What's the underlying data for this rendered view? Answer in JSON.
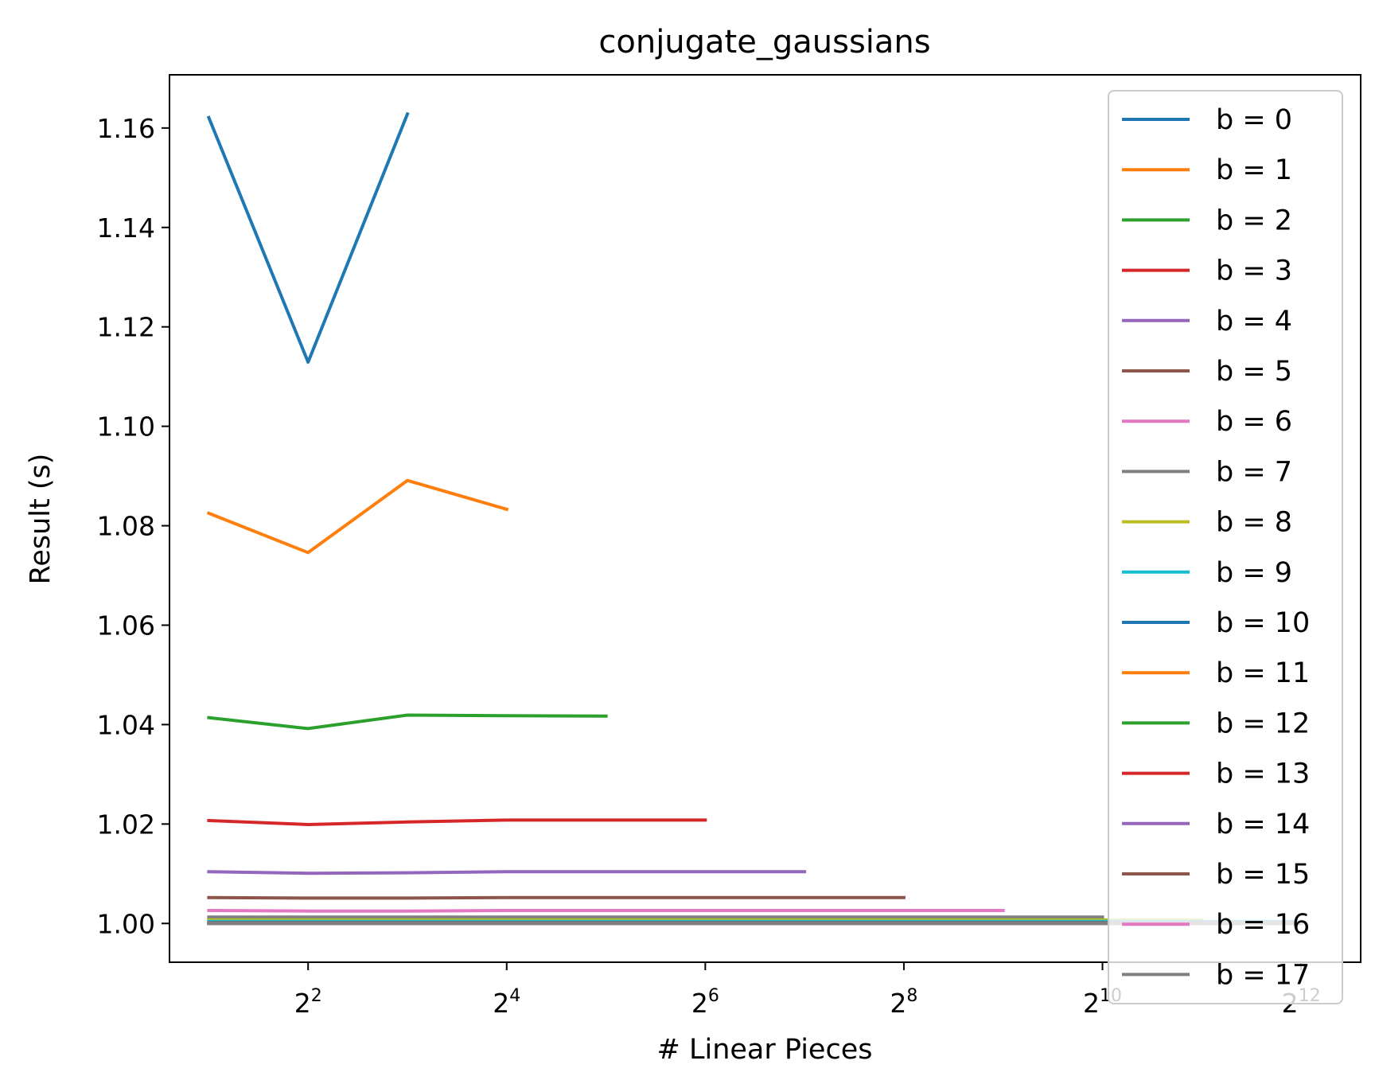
{
  "chart_data": {
    "type": "line",
    "title": "conjugate_gaussians",
    "xlabel": "# Linear Pieces",
    "ylabel": "Result (s)",
    "x_scale": "log2",
    "x_ticks": [
      {
        "base": "2",
        "exp": "2",
        "value": 4
      },
      {
        "base": "2",
        "exp": "4",
        "value": 16
      },
      {
        "base": "2",
        "exp": "6",
        "value": 64
      },
      {
        "base": "2",
        "exp": "8",
        "value": 256
      },
      {
        "base": "2",
        "exp": "10",
        "value": 1024
      },
      {
        "base": "2",
        "exp": "12",
        "value": 4096
      }
    ],
    "xlim": [
      1.52,
      6210
    ],
    "y_ticks": [
      "1.00",
      "1.02",
      "1.04",
      "1.06",
      "1.08",
      "1.10",
      "1.12",
      "1.14",
      "1.16"
    ],
    "ylim": [
      0.9922,
      1.1707
    ],
    "grid": false,
    "legend_position": "right",
    "series": [
      {
        "name": "b = 0",
        "color": "#1f77b4",
        "x": [
          2,
          4,
          8
        ],
        "y": [
          1.1621,
          1.1129,
          1.1628
        ]
      },
      {
        "name": "b = 1",
        "color": "#ff7f0e",
        "x": [
          2,
          4,
          8,
          16
        ],
        "y": [
          1.0825,
          1.0746,
          1.0891,
          1.0833
        ]
      },
      {
        "name": "b = 2",
        "color": "#2ca02c",
        "x": [
          2,
          4,
          8,
          16,
          32
        ],
        "y": [
          1.0414,
          1.0392,
          1.0419,
          1.0418,
          1.0417
        ]
      },
      {
        "name": "b = 3",
        "color": "#d62728",
        "x": [
          2,
          4,
          8,
          16,
          32,
          64
        ],
        "y": [
          1.0207,
          1.0199,
          1.0204,
          1.0208,
          1.0208,
          1.0208
        ]
      },
      {
        "name": "b = 4",
        "color": "#9467bd",
        "x": [
          2,
          4,
          8,
          16,
          32,
          64,
          128
        ],
        "y": [
          1.0104,
          1.0101,
          1.0102,
          1.0104,
          1.0104,
          1.0104,
          1.0104
        ]
      },
      {
        "name": "b = 5",
        "color": "#8c564b",
        "x": [
          2,
          4,
          8,
          16,
          32,
          64,
          128,
          256
        ],
        "y": [
          1.0052,
          1.0051,
          1.0051,
          1.0052,
          1.0052,
          1.0052,
          1.0052,
          1.0052
        ]
      },
      {
        "name": "b = 6",
        "color": "#e377c2",
        "x": [
          2,
          4,
          8,
          16,
          32,
          64,
          128,
          256,
          512
        ],
        "y": [
          1.0026,
          1.0025,
          1.0025,
          1.0026,
          1.0026,
          1.0026,
          1.0026,
          1.0026,
          1.0026
        ]
      },
      {
        "name": "b = 7",
        "color": "#7f7f7f",
        "x": [
          2,
          4,
          8,
          16,
          32,
          64,
          128,
          256,
          512,
          1024
        ],
        "y": [
          1.0013,
          1.0013,
          1.0013,
          1.0013,
          1.0013,
          1.0013,
          1.0013,
          1.0013,
          1.0013,
          1.0013
        ]
      },
      {
        "name": "b = 8",
        "color": "#bcbd22",
        "x": [
          2,
          4,
          8,
          16,
          32,
          64,
          128,
          256,
          512,
          1024,
          2048
        ],
        "y": [
          1.0007,
          1.0007,
          1.0007,
          1.0007,
          1.0007,
          1.0007,
          1.0007,
          1.0007,
          1.0007,
          1.0007,
          1.0007
        ]
      },
      {
        "name": "b = 9",
        "color": "#17becf",
        "x": [
          2,
          4,
          8,
          16,
          32,
          64,
          128,
          256,
          512,
          1024,
          2048,
          4096
        ],
        "y": [
          1.0004,
          1.0004,
          1.0004,
          1.0004,
          1.0004,
          1.0004,
          1.0004,
          1.0004,
          1.0004,
          1.0004,
          1.0004,
          1.0004
        ]
      },
      {
        "name": "b = 10",
        "color": "#1f77b4",
        "x": [
          2,
          4,
          8,
          16,
          32,
          64,
          128,
          256,
          512,
          1024,
          2048,
          4096
        ],
        "y": [
          1.0002,
          1.0002,
          1.0002,
          1.0002,
          1.0002,
          1.0002,
          1.0002,
          1.0002,
          1.0002,
          1.0002,
          1.0002,
          1.0002
        ]
      },
      {
        "name": "b = 11",
        "color": "#ff7f0e",
        "x": [
          2,
          4,
          8,
          16,
          32,
          64,
          128,
          256,
          512,
          1024,
          2048,
          4096
        ],
        "y": [
          1.0001,
          1.0001,
          1.0001,
          1.0001,
          1.0001,
          1.0001,
          1.0001,
          1.0001,
          1.0001,
          1.0001,
          1.0001,
          1.0001
        ]
      },
      {
        "name": "b = 12",
        "color": "#2ca02c",
        "x": [
          2,
          4,
          8,
          16,
          32,
          64,
          128,
          256,
          512,
          1024,
          2048,
          4096
        ],
        "y": [
          1.00005,
          1.00005,
          1.00005,
          1.00005,
          1.00005,
          1.00005,
          1.00005,
          1.00005,
          1.00005,
          1.00005,
          1.00005,
          1.00005
        ]
      },
      {
        "name": "b = 13",
        "color": "#d62728",
        "x": [
          2,
          4,
          8,
          16,
          32,
          64,
          128,
          256,
          512,
          1024,
          2048,
          4096
        ],
        "y": [
          1.00003,
          1.00003,
          1.00003,
          1.00003,
          1.00003,
          1.00003,
          1.00003,
          1.00003,
          1.00003,
          1.00003,
          1.00003,
          1.00003
        ]
      },
      {
        "name": "b = 14",
        "color": "#9467bd",
        "x": [
          2,
          4,
          8,
          16,
          32,
          64,
          128,
          256,
          512,
          1024,
          2048,
          4096
        ],
        "y": [
          1.00002,
          1.00002,
          1.00002,
          1.00002,
          1.00002,
          1.00002,
          1.00002,
          1.00002,
          1.00002,
          1.00002,
          1.00002,
          1.00002
        ]
      },
      {
        "name": "b = 15",
        "color": "#8c564b",
        "x": [
          2,
          4,
          8,
          16,
          32,
          64,
          128,
          256,
          512,
          1024,
          2048,
          4096
        ],
        "y": [
          1.00001,
          1.00001,
          1.00001,
          1.00001,
          1.00001,
          1.00001,
          1.00001,
          1.00001,
          1.00001,
          1.00001,
          1.00001,
          1.00001
        ]
      },
      {
        "name": "b = 16",
        "color": "#e377c2",
        "x": [
          2,
          4,
          8,
          16,
          32,
          64,
          128,
          256,
          512,
          1024,
          2048,
          4096
        ],
        "y": [
          1.0,
          1.0,
          1.0,
          1.0,
          1.0,
          1.0,
          1.0,
          1.0,
          1.0,
          1.0,
          1.0,
          1.0
        ]
      },
      {
        "name": "b = 17",
        "color": "#7f7f7f",
        "x": [
          2,
          4,
          8,
          16,
          32,
          64,
          128,
          256,
          512,
          1024,
          2048,
          4096
        ],
        "y": [
          1.0,
          1.0,
          1.0,
          1.0,
          1.0,
          1.0,
          1.0,
          1.0,
          1.0,
          1.0,
          1.0,
          1.0
        ]
      }
    ]
  }
}
